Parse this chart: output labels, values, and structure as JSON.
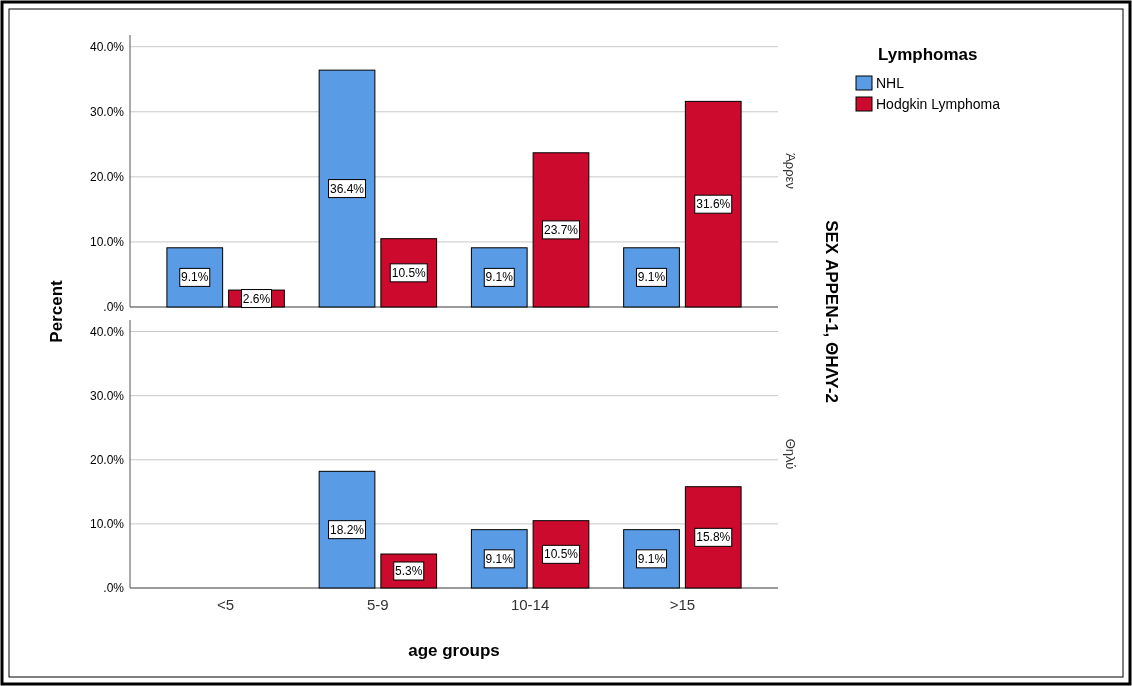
{
  "chart_data": [
    {
      "type": "bar",
      "title": "Άρρεν",
      "ylabel": "Percent",
      "y2label": "SEX ΑΡΡΕΝ-1, ΘΗΛΥ-2",
      "legend_title": "Lymphomas",
      "legend": "top right",
      "categories": [
        null,
        null,
        null,
        null
      ],
      "series": [
        {
          "name": "NHL",
          "color": "#5a9be6",
          "values": [
            9.1,
            36.4,
            9.1,
            9.1
          ],
          "value_labels": [
            "9.1%",
            "36.4%",
            "9.1%",
            "9.1%"
          ]
        },
        {
          "name": "Hodgkin Lymphoma",
          "color": "#cc0a2e",
          "values": [
            2.6,
            10.5,
            23.7,
            31.6
          ],
          "value_labels": [
            "2.6%",
            "10.5%",
            "23.7%",
            "31.6%"
          ]
        }
      ],
      "ylim": [
        0,
        41.8
      ],
      "yticks": [
        {
          "value": 0,
          "label": ".0%"
        },
        {
          "value": 10,
          "label": "10.0%"
        },
        {
          "value": 20,
          "label": "20.0%"
        },
        {
          "value": 30,
          "label": "30.0%"
        },
        {
          "value": 40,
          "label": "40.0%"
        }
      ],
      "grid": "y",
      "tick_labels": "y"
    },
    {
      "type": "bar",
      "title": "Θηλύ",
      "xlabel": "age groups",
      "categories": [
        "<5",
        "5-9",
        "10-14",
        ">15"
      ],
      "series": [
        {
          "color": "#5a9be6",
          "values": [
            null,
            18.2,
            9.1,
            9.1
          ],
          "value_labels": [
            null,
            "18.2%",
            "9.1%",
            "9.1%"
          ]
        },
        {
          "color": "#cc0a2e",
          "values": [
            null,
            5.3,
            10.5,
            15.8
          ],
          "value_labels": [
            null,
            "5.3%",
            "10.5%",
            "15.8%"
          ]
        }
      ],
      "ylim": [
        0,
        41.8
      ],
      "yticks": [
        {
          "value": 0,
          "label": ".0%"
        },
        {
          "value": 10,
          "label": "10.0%"
        },
        {
          "value": 20,
          "label": "20.0%"
        },
        {
          "value": 30,
          "label": "30.0%"
        },
        {
          "value": 40,
          "label": "40.0%"
        }
      ],
      "grid": "y"
    }
  ]
}
